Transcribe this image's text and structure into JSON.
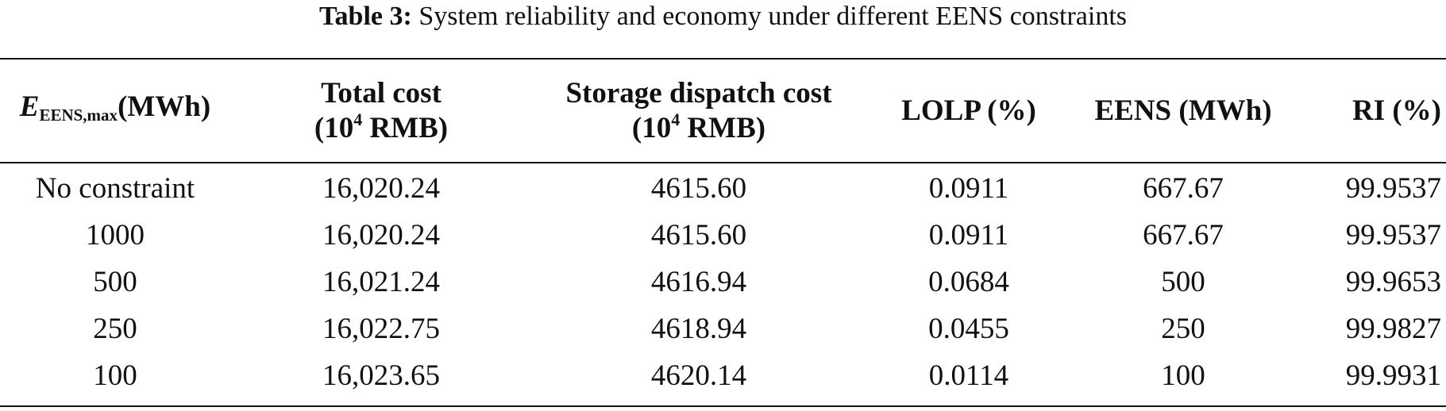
{
  "caption": {
    "label": "Table 3:",
    "text": "System reliability and economy under different EENS constraints"
  },
  "header": {
    "col1": {
      "symbol": "E",
      "subscript": "EENS,max",
      "unit": "(MWh)"
    },
    "col2": {
      "line1": "Total cost",
      "line2_pre": "(10",
      "line2_sup": "4",
      "line2_post": " RMB)"
    },
    "col3": {
      "line1": "Storage dispatch cost",
      "line2_pre": "(10",
      "line2_sup": "4",
      "line2_post": " RMB)"
    },
    "col4": "LOLP (%)",
    "col5": "EENS (MWh)",
    "col6": "RI (%)"
  },
  "rows": [
    {
      "constraint": "No constraint",
      "total_cost": "16,020.24",
      "storage_cost": "4615.60",
      "lolp": "0.0911",
      "eens": "667.67",
      "ri": "99.9537"
    },
    {
      "constraint": "1000",
      "total_cost": "16,020.24",
      "storage_cost": "4615.60",
      "lolp": "0.0911",
      "eens": "667.67",
      "ri": "99.9537"
    },
    {
      "constraint": "500",
      "total_cost": "16,021.24",
      "storage_cost": "4616.94",
      "lolp": "0.0684",
      "eens": "500",
      "ri": "99.9653"
    },
    {
      "constraint": "250",
      "total_cost": "16,022.75",
      "storage_cost": "4618.94",
      "lolp": "0.0455",
      "eens": "250",
      "ri": "99.9827"
    },
    {
      "constraint": "100",
      "total_cost": "16,023.65",
      "storage_cost": "4620.14",
      "lolp": "0.0114",
      "eens": "100",
      "ri": "99.9931"
    }
  ]
}
